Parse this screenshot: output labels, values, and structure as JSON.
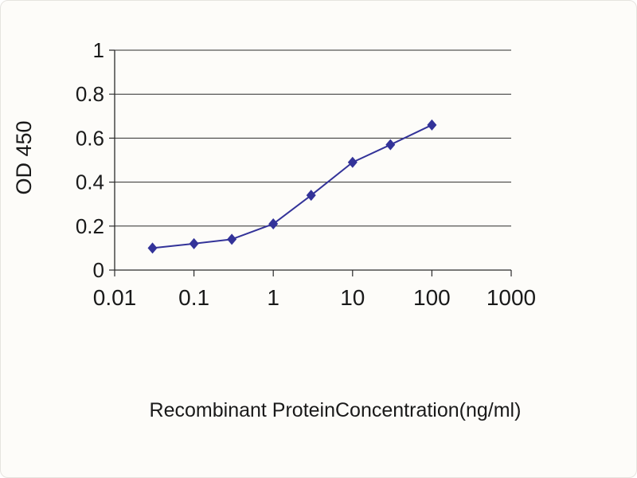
{
  "page": {
    "background": "#fdfcf9",
    "border_color": "#e6e4df"
  },
  "chart_data": {
    "type": "line",
    "title": "",
    "xlabel": "Recombinant ProteinConcentration(ng/ml)",
    "ylabel": "OD 450",
    "x_scale": "log",
    "xlim": [
      0.01,
      1000
    ],
    "ylim": [
      0,
      1
    ],
    "x_ticks": [
      0.01,
      0.1,
      1,
      10,
      100,
      1000
    ],
    "x_tick_labels": [
      "0.01",
      "0.1",
      "1",
      "10",
      "100",
      "1000"
    ],
    "y_ticks": [
      0,
      0.2,
      0.4,
      0.6,
      0.8,
      1
    ],
    "y_tick_labels": [
      "0",
      "0.2",
      "0.4",
      "0.6",
      "0.8",
      "1"
    ],
    "grid": "horizontal",
    "legend": "none",
    "axis_color": "#2b2b2b",
    "text_color": "#1a1a1a",
    "series": [
      {
        "name": "OD 450",
        "x": [
          0.03,
          0.1,
          0.3,
          1,
          3,
          10,
          30,
          100
        ],
        "y": [
          0.1,
          0.12,
          0.14,
          0.21,
          0.34,
          0.49,
          0.57,
          0.66
        ],
        "color": "#333399",
        "marker": "diamond"
      }
    ]
  }
}
